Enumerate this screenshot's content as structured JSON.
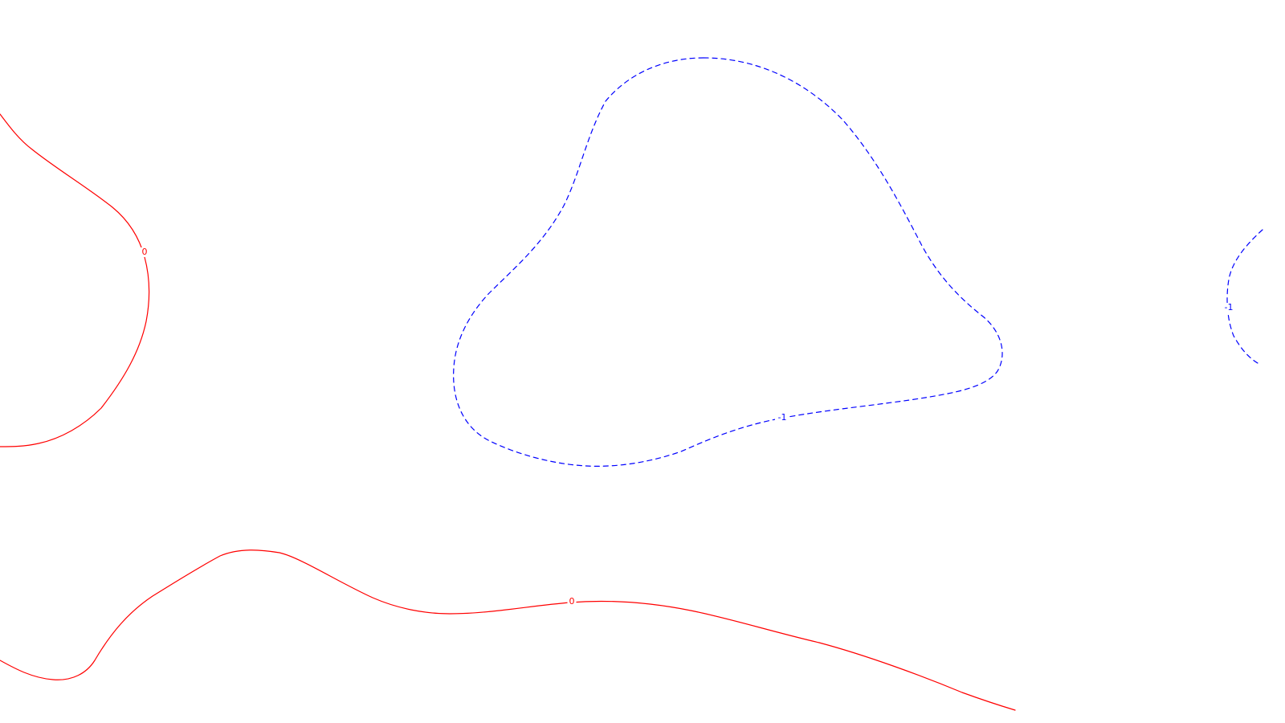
{
  "chart_data": {
    "type": "contour",
    "title": "",
    "xlabel": "",
    "ylabel": "",
    "grid": false,
    "legend": "none",
    "levels": [
      {
        "value": 0,
        "label": "0",
        "color": "#ff0000",
        "style": "solid"
      },
      {
        "value": -1,
        "label": "-1",
        "color": "#0000ff",
        "style": "dashed"
      }
    ]
  }
}
